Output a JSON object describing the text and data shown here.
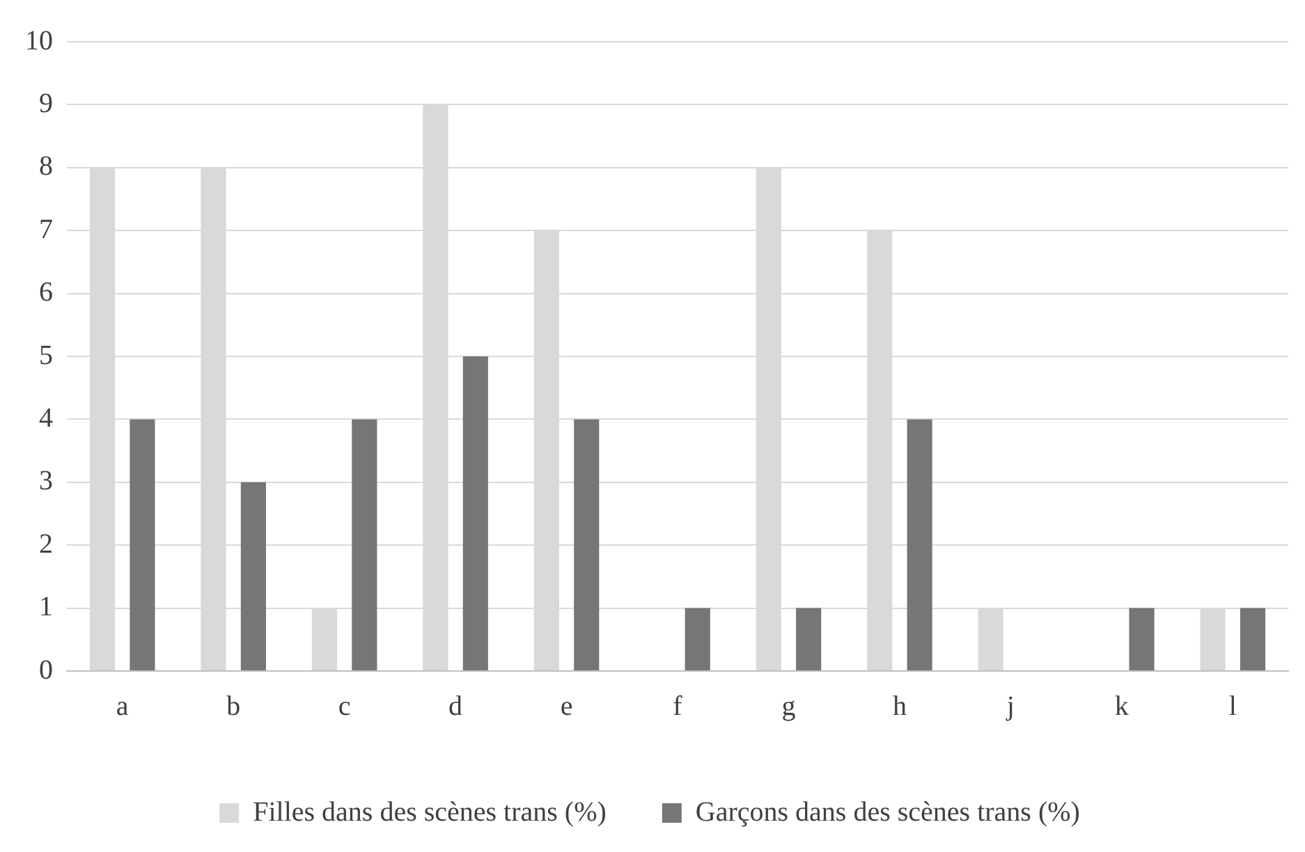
{
  "chart_data": {
    "type": "bar",
    "categories": [
      "a",
      "b",
      "c",
      "d",
      "e",
      "f",
      "g",
      "h",
      "j",
      "k",
      "l"
    ],
    "series": [
      {
        "name": "Filles dans des scènes trans (%)",
        "color": "#d9d9d9",
        "values": [
          8,
          8,
          1,
          9,
          7,
          0,
          8,
          7,
          1,
          0,
          1
        ]
      },
      {
        "name": "Garçons dans des scènes trans (%)",
        "color": "#767676",
        "values": [
          4,
          3,
          4,
          5,
          4,
          1,
          1,
          4,
          0,
          1,
          1
        ]
      }
    ],
    "ylim": [
      0,
      10
    ],
    "yticks": [
      0,
      1,
      2,
      3,
      4,
      5,
      6,
      7,
      8,
      9,
      10
    ],
    "grid": "y",
    "legend": "bottom"
  }
}
